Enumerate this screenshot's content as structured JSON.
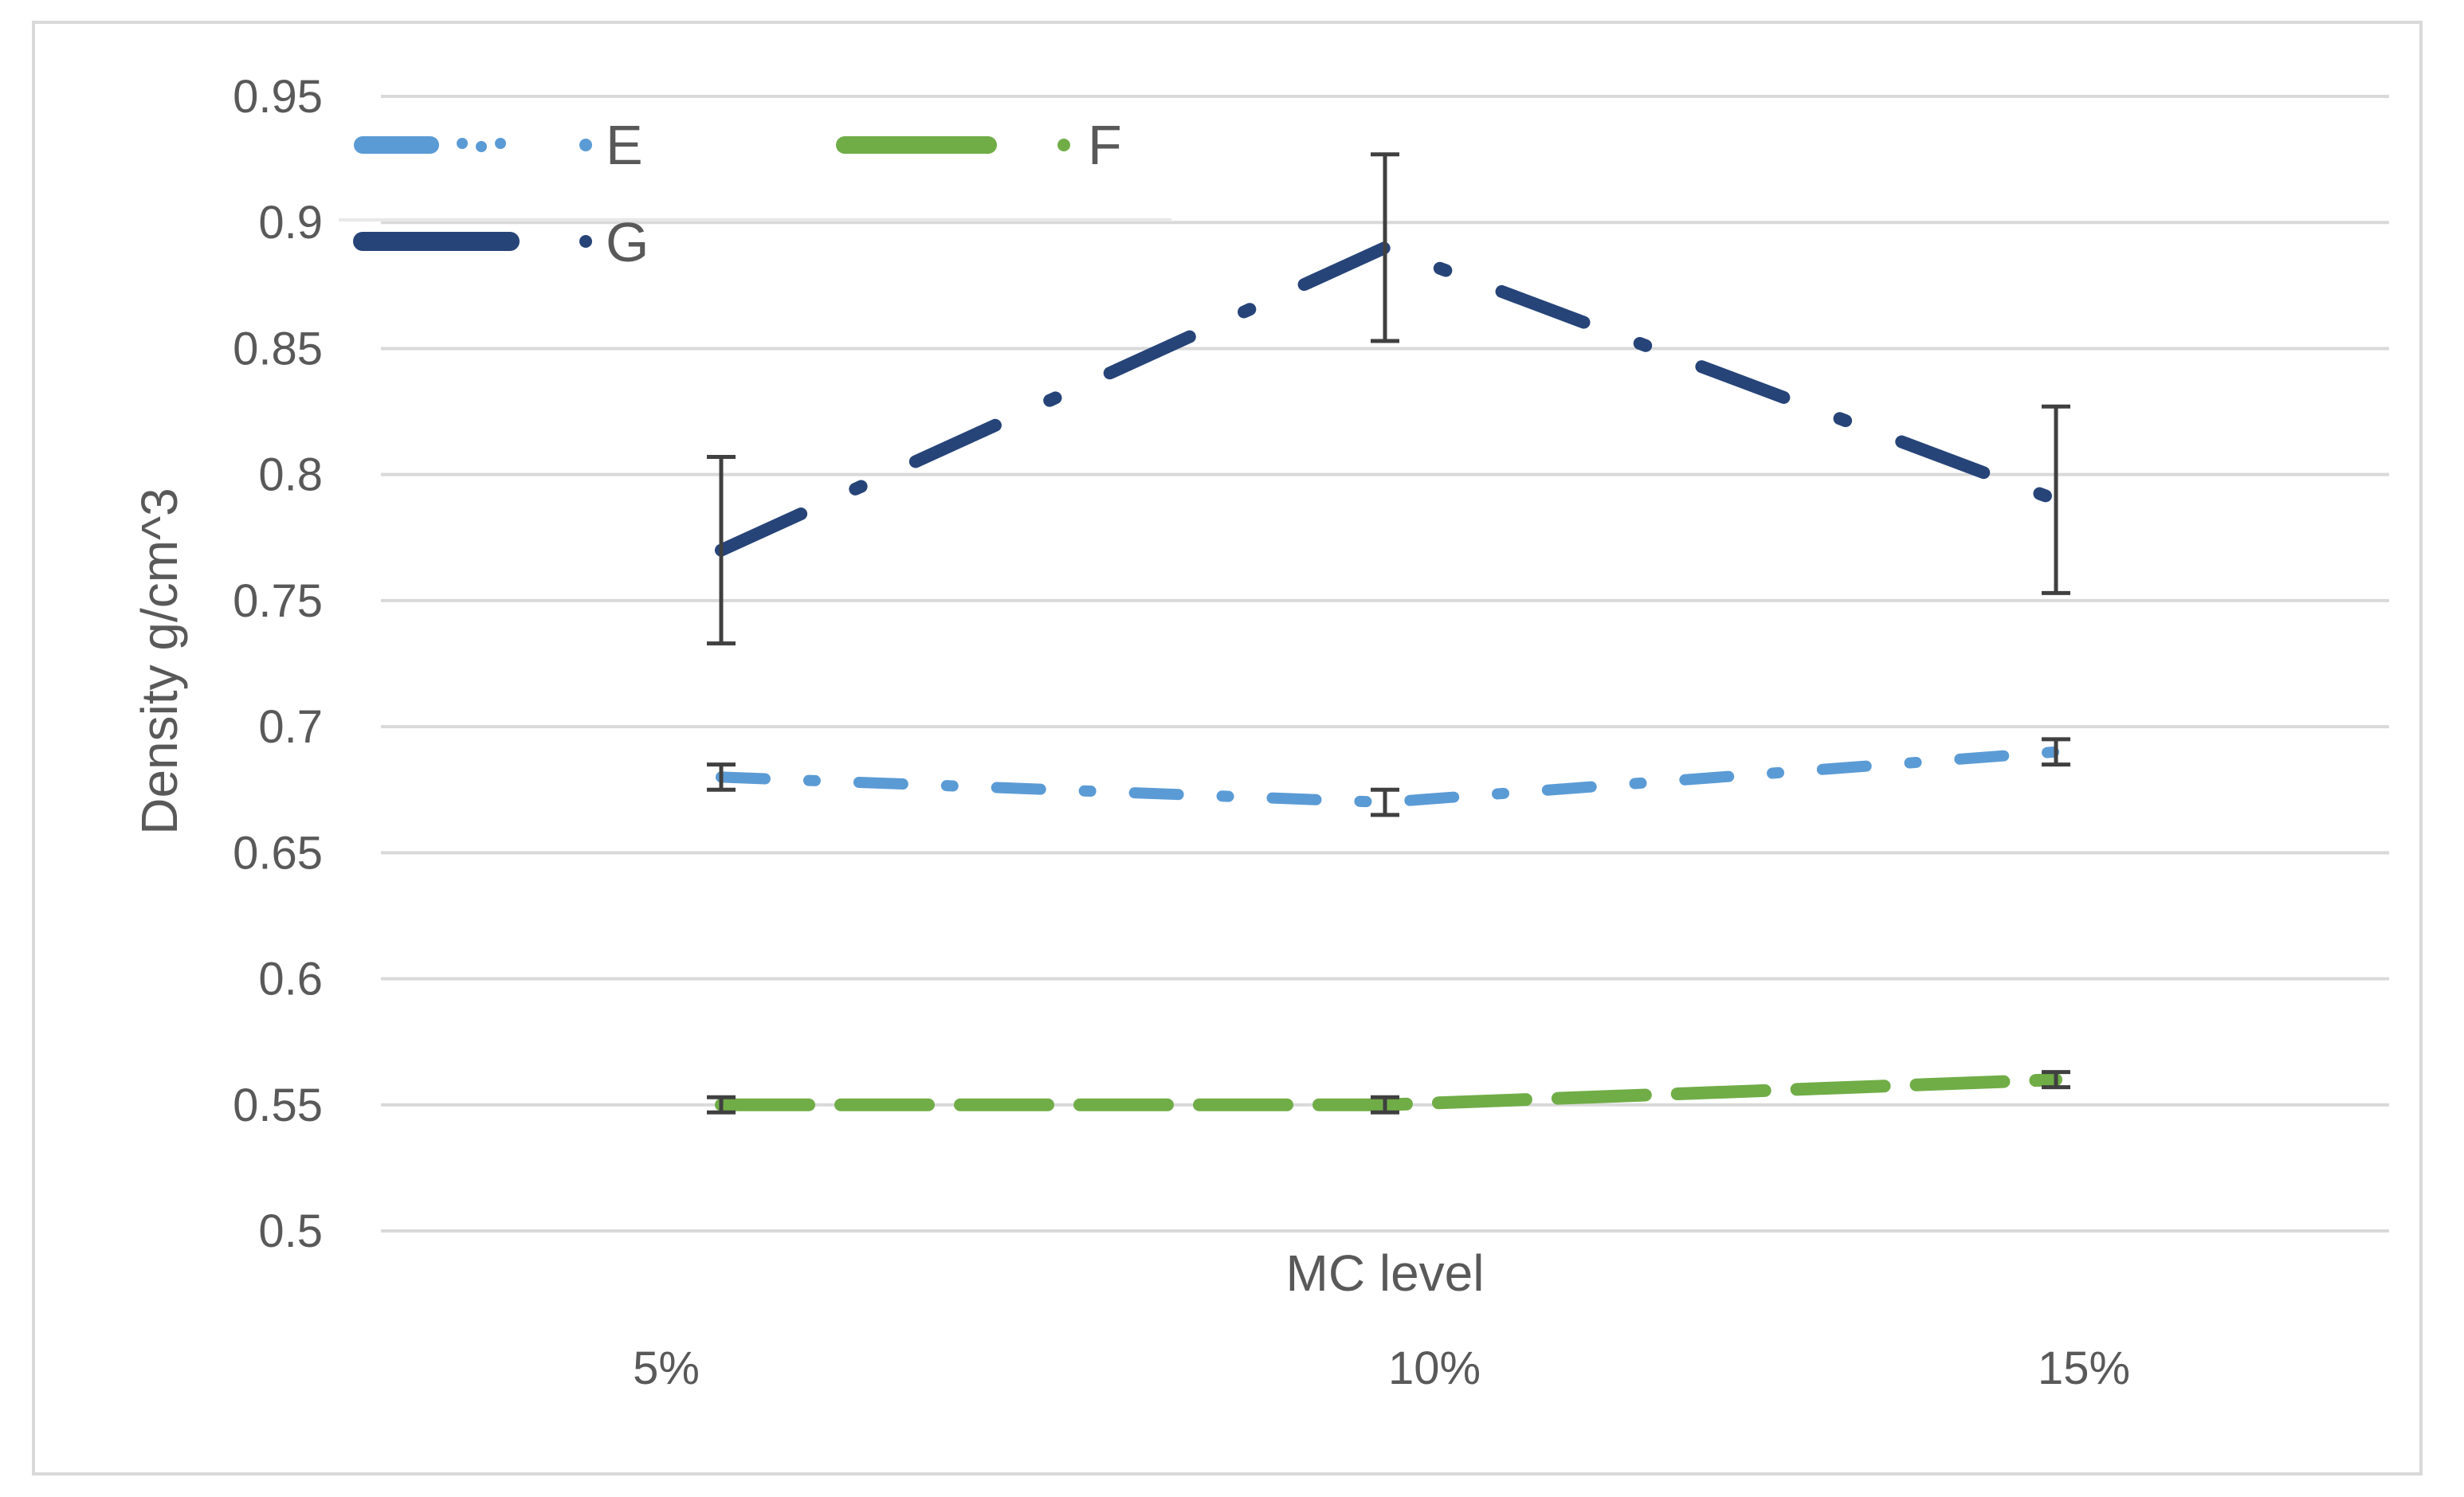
{
  "chart_data": {
    "type": "line",
    "title": "",
    "xlabel": "MC level",
    "ylabel": "Density g/cm^3",
    "categories": [
      "5%",
      "10%",
      "15%"
    ],
    "ylim": [
      0.5,
      0.95
    ],
    "yticks": [
      0.5,
      0.55,
      0.6,
      0.65,
      0.7,
      0.75,
      0.8,
      0.85,
      0.9,
      0.95
    ],
    "ytick_labels": [
      "0.5",
      "0.55",
      "0.6",
      "0.65",
      "0.7",
      "0.75",
      "0.8",
      "0.85",
      "0.9",
      "0.95"
    ],
    "grid": true,
    "legend_position": "top-left",
    "series": [
      {
        "name": "E",
        "values": [
          0.68,
          0.67,
          0.69
        ],
        "error": [
          0.005,
          0.005,
          0.005
        ],
        "color": "#5b9bd5",
        "style": "dash-dot"
      },
      {
        "name": "F",
        "values": [
          0.55,
          0.55,
          0.56
        ],
        "error": [
          0.003,
          0.003,
          0.003
        ],
        "color": "#70ad47",
        "style": "dashed"
      },
      {
        "name": "G",
        "values": [
          0.77,
          0.89,
          0.79
        ],
        "error": [
          0.037,
          0.037,
          0.037
        ],
        "color": "#264478",
        "style": "dash-dot"
      }
    ]
  },
  "colors": {
    "grid": "#d9d9d9",
    "error_bar": "#404040",
    "text": "#595959",
    "frame": "#d9d9d9"
  }
}
